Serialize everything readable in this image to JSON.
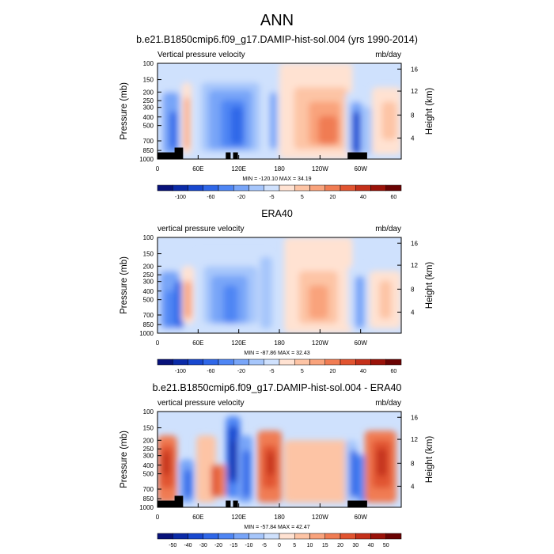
{
  "page": {
    "title": "ANN"
  },
  "colorbars": {
    "full": {
      "labels": [
        "-100",
        "-60",
        "-20",
        "-5",
        "5",
        "20",
        "40",
        "60"
      ],
      "colors": [
        "#08127a",
        "#0b2ba8",
        "#1848cf",
        "#2f67e8",
        "#4f86f4",
        "#78a5f8",
        "#a6c6fb",
        "#cfe1fd",
        "#ffe2d2",
        "#fdc4a5",
        "#f9a37c",
        "#f07c53",
        "#e15430",
        "#c4301a",
        "#9a1209",
        "#6a0303"
      ]
    },
    "diff": {
      "labels": [
        "-50",
        "-40",
        "-30",
        "-20",
        "-15",
        "-10",
        "-5",
        "0",
        "5",
        "10",
        "15",
        "20",
        "30",
        "40",
        "50"
      ],
      "colors": [
        "#08127a",
        "#0b2ba8",
        "#1848cf",
        "#2f67e8",
        "#4f86f4",
        "#78a5f8",
        "#a6c6fb",
        "#cfe1fd",
        "#ffe2d2",
        "#fdc4a5",
        "#f9a37c",
        "#f07c53",
        "#e15430",
        "#c4301a",
        "#9a1209",
        "#6a0303"
      ]
    }
  },
  "chart_data": [
    {
      "type": "heatmap",
      "title": "b.e21.B1850cmip6.f09_g17.DAMIP-hist-sol.004 (yrs 1990-2014)",
      "left_string": "Vertical pressure velocity",
      "right_string": "mb/day",
      "ylabel": "Pressure (mb)",
      "ylabel_right": "Height (km)",
      "x_ticks": [
        "0",
        "60E",
        "120E",
        "180",
        "120W",
        "60W"
      ],
      "y_ticks": [
        "100",
        "150",
        "200",
        "250",
        "300",
        "400",
        "500",
        "700",
        "850",
        "1000"
      ],
      "y_ticks_right": [
        "16",
        "12",
        "8",
        "4"
      ],
      "stats": "MIN = -120.10  MAX = 34.19",
      "colorbar": "full"
    },
    {
      "type": "heatmap",
      "title": "ERA40",
      "left_string": "vertical pressure velocity",
      "right_string": "mb/day",
      "ylabel": "Pressure (mb)",
      "ylabel_right": "Height (km)",
      "x_ticks": [
        "0",
        "60E",
        "120E",
        "180",
        "120W",
        "60W"
      ],
      "y_ticks": [
        "100",
        "150",
        "200",
        "250",
        "300",
        "400",
        "500",
        "700",
        "850",
        "1000"
      ],
      "y_ticks_right": [
        "16",
        "12",
        "8",
        "4"
      ],
      "stats": "MIN = -87.86  MAX = 32.43",
      "colorbar": "full"
    },
    {
      "type": "heatmap",
      "title": "b.e21.B1850cmip6.f09_g17.DAMIP-hist-sol.004 - ERA40",
      "left_string": "vertical pressure velocity",
      "right_string": "mb/day",
      "ylabel": "Pressure (mb)",
      "ylabel_right": "Height (km)",
      "x_ticks": [
        "0",
        "60E",
        "120E",
        "180",
        "120W",
        "60W"
      ],
      "y_ticks": [
        "100",
        "150",
        "200",
        "250",
        "300",
        "400",
        "500",
        "700",
        "850",
        "1000"
      ],
      "y_ticks_right": [
        "16",
        "12",
        "8",
        "4"
      ],
      "stats": "MIN = -57.84  MAX = 42.47",
      "colorbar": "diff"
    }
  ]
}
